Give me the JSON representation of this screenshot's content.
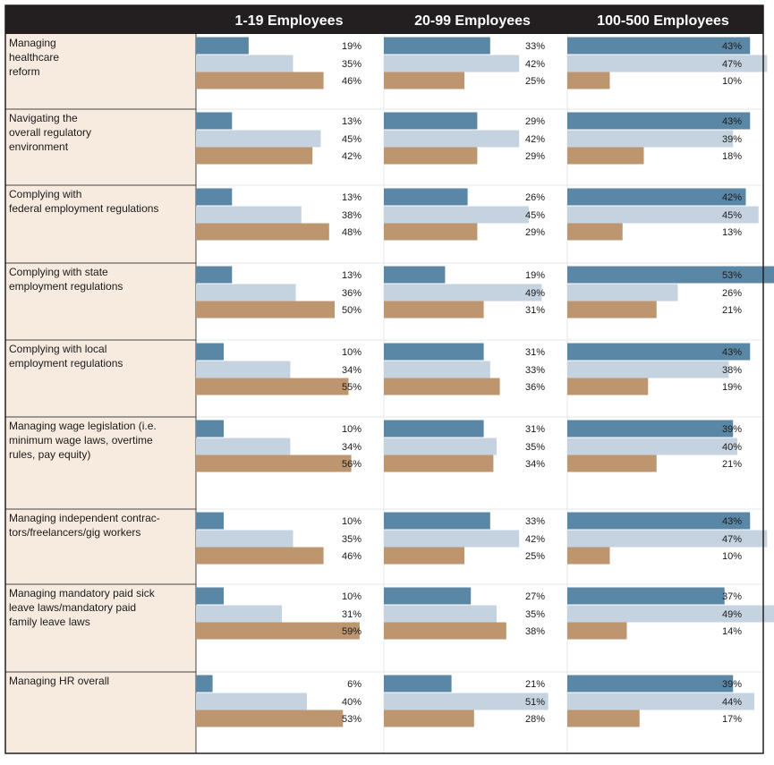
{
  "chart_data": {
    "type": "bar",
    "orientation": "horizontal",
    "colors": [
      "#5b87a6",
      "#c5d3e0",
      "#bd9670"
    ],
    "groups": [
      "1-19 Employees",
      "20-99 Employees",
      "100-500 Employees"
    ],
    "categories": [
      {
        "lines": [
          "Managing",
          "healthcare",
          "reform"
        ],
        "values": [
          [
            19,
            35,
            46
          ],
          [
            33,
            42,
            25
          ],
          [
            43,
            47,
            10
          ]
        ]
      },
      {
        "lines": [
          "Navigating the",
          "overall regulatory",
          "environment"
        ],
        "values": [
          [
            13,
            45,
            42
          ],
          [
            29,
            42,
            29
          ],
          [
            43,
            39,
            18
          ]
        ]
      },
      {
        "lines": [
          "Complying with",
          "federal employment regulations"
        ],
        "values": [
          [
            13,
            38,
            48
          ],
          [
            26,
            45,
            29
          ],
          [
            42,
            45,
            13
          ]
        ]
      },
      {
        "lines": [
          "Complying with state",
          "employment regulations"
        ],
        "values": [
          [
            13,
            36,
            50
          ],
          [
            19,
            49,
            31
          ],
          [
            53,
            26,
            21
          ]
        ]
      },
      {
        "lines": [
          "Complying with local",
          "employment regulations"
        ],
        "values": [
          [
            10,
            34,
            55
          ],
          [
            31,
            33,
            36
          ],
          [
            43,
            38,
            19
          ]
        ]
      },
      {
        "lines": [
          "Managing wage legislation (i.e.",
          "minimum wage laws, overtime",
          "rules, pay equity)"
        ],
        "values": [
          [
            10,
            34,
            56
          ],
          [
            31,
            35,
            34
          ],
          [
            39,
            40,
            21
          ]
        ]
      },
      {
        "lines": [
          "Managing independent contrac-",
          "tors/freelancers/gig workers"
        ],
        "values": [
          [
            10,
            35,
            46
          ],
          [
            33,
            42,
            25
          ],
          [
            43,
            47,
            10
          ]
        ]
      },
      {
        "lines": [
          "Managing mandatory paid sick",
          "leave laws/mandatory paid",
          "family leave laws"
        ],
        "values": [
          [
            10,
            31,
            59
          ],
          [
            27,
            35,
            38
          ],
          [
            37,
            49,
            14
          ]
        ]
      },
      {
        "lines": [
          "Managing HR overall"
        ],
        "values": [
          [
            6,
            40,
            53
          ],
          [
            21,
            51,
            28
          ],
          [
            39,
            44,
            17
          ]
        ]
      }
    ]
  }
}
